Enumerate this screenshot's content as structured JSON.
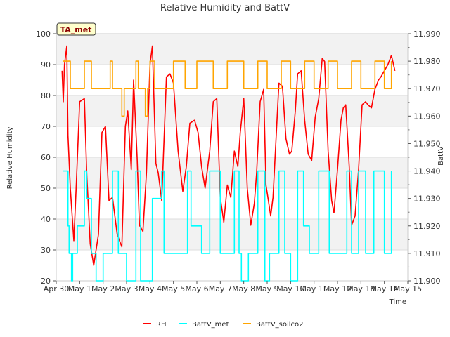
{
  "chart_data": {
    "type": "line",
    "title": "Relative Humidity and BattV",
    "badge": "TA_met",
    "xlabel": "Time",
    "ylabel_left": "Relative Humidity",
    "ylabel_right": "BattV",
    "x_range": [
      0,
      15
    ],
    "ylim_left": [
      20,
      100
    ],
    "ylim_right": [
      11.9,
      11.99
    ],
    "x_ticks": [
      {
        "x": 0,
        "label": "Apr 30"
      },
      {
        "x": 1,
        "label": "May 1"
      },
      {
        "x": 2,
        "label": "May 2"
      },
      {
        "x": 3,
        "label": "May 3"
      },
      {
        "x": 4,
        "label": "May 4"
      },
      {
        "x": 5,
        "label": "May 5"
      },
      {
        "x": 6,
        "label": "May 6"
      },
      {
        "x": 7,
        "label": "May 7"
      },
      {
        "x": 8,
        "label": "May 8"
      },
      {
        "x": 9,
        "label": "May 9"
      },
      {
        "x": 10,
        "label": "May 10"
      },
      {
        "x": 11,
        "label": "May 11"
      },
      {
        "x": 12,
        "label": "May 12"
      },
      {
        "x": 13,
        "label": "May 13"
      },
      {
        "x": 14,
        "label": "May 14"
      },
      {
        "x": 15,
        "label": "May 15"
      }
    ],
    "y_ticks_left": [
      "20",
      "30",
      "40",
      "50",
      "60",
      "70",
      "80",
      "90",
      "100"
    ],
    "y_ticks_right": [
      "11.900",
      "11.910",
      "11.920",
      "11.930",
      "11.940",
      "11.950",
      "11.960",
      "11.970",
      "11.980",
      "11.990"
    ],
    "grid": true,
    "legend_position": "bottom",
    "series": [
      {
        "name": "RH",
        "axis": "left",
        "color": "#ff0000",
        "x": [
          0.25,
          0.3,
          0.35,
          0.45,
          0.5,
          0.6,
          0.75,
          0.85,
          1.0,
          1.2,
          1.3,
          1.45,
          1.6,
          1.8,
          1.95,
          2.1,
          2.25,
          2.4,
          2.6,
          2.8,
          2.95,
          3.05,
          3.2,
          3.3,
          3.45,
          3.55,
          3.7,
          3.85,
          4.0,
          4.1,
          4.25,
          4.35,
          4.5,
          4.7,
          4.85,
          5.0,
          5.2,
          5.4,
          5.55,
          5.7,
          5.9,
          6.05,
          6.2,
          6.35,
          6.55,
          6.7,
          6.85,
          7.0,
          7.15,
          7.3,
          7.45,
          7.6,
          7.75,
          7.85,
          8.0,
          8.15,
          8.3,
          8.45,
          8.55,
          8.7,
          8.85,
          8.95,
          9.05,
          9.15,
          9.25,
          9.35,
          9.5,
          9.65,
          9.8,
          9.95,
          10.05,
          10.2,
          10.3,
          10.45,
          10.6,
          10.75,
          10.9,
          11.05,
          11.2,
          11.35,
          11.45,
          11.6,
          11.75,
          11.85,
          12.0,
          12.15,
          12.25,
          12.35,
          12.5,
          12.6,
          12.75,
          12.9,
          13.05,
          13.2,
          13.3,
          13.45,
          13.6,
          13.75,
          13.85,
          14.0,
          14.15,
          14.3,
          14.45
        ],
        "y": [
          88,
          78,
          90,
          96,
          67,
          50,
          33,
          50,
          78,
          79,
          55,
          32,
          25,
          35,
          68,
          70,
          46,
          47,
          35,
          31,
          70,
          75,
          56,
          85,
          60,
          38,
          36,
          55,
          90,
          96,
          58,
          55,
          46,
          86,
          87,
          84,
          62,
          49,
          57,
          71,
          72,
          68,
          57,
          50,
          62,
          78,
          79,
          47,
          39,
          51,
          47,
          62,
          57,
          68,
          79,
          50,
          38,
          45,
          55,
          78,
          82,
          51,
          46,
          41,
          47,
          62,
          84,
          83,
          66,
          61,
          62,
          75,
          87,
          88,
          72,
          61,
          59,
          73,
          79,
          92,
          91,
          62,
          46,
          42,
          56,
          72,
          76,
          77,
          57,
          38,
          41,
          56,
          77,
          78,
          77,
          76,
          82,
          85,
          86,
          88,
          90,
          93,
          88
        ]
      },
      {
        "name": "BattV_met",
        "axis": "right",
        "color": "#00ffff",
        "x": [
          0.3,
          0.5,
          0.55,
          0.65,
          0.7,
          0.9,
          1.2,
          1.3,
          1.5,
          1.7,
          2.0,
          2.4,
          2.65,
          3.0,
          3.4,
          3.6,
          3.9,
          4.1,
          4.5,
          4.6,
          5.0,
          5.6,
          5.75,
          6.2,
          6.55,
          6.7,
          7.0,
          7.6,
          7.8,
          7.9,
          8.2,
          8.6,
          8.9,
          9.1,
          9.5,
          9.75,
          10.0,
          10.3,
          10.55,
          10.8,
          11.2,
          11.65,
          11.95,
          12.4,
          12.6,
          12.9,
          13.2,
          13.55,
          14.0,
          14.3
        ],
        "y": [
          11.94,
          11.92,
          11.91,
          11.9,
          11.91,
          11.92,
          11.94,
          11.93,
          11.91,
          11.9,
          11.91,
          11.94,
          11.91,
          11.9,
          11.94,
          11.9,
          11.9,
          11.93,
          11.94,
          11.91,
          11.91,
          11.94,
          11.92,
          11.91,
          11.94,
          11.94,
          11.91,
          11.94,
          11.91,
          11.9,
          11.91,
          11.94,
          11.9,
          11.91,
          11.94,
          11.91,
          11.9,
          11.94,
          11.92,
          11.91,
          11.94,
          11.91,
          11.91,
          11.94,
          11.91,
          11.94,
          11.91,
          11.94,
          11.91,
          11.94
        ]
      },
      {
        "name": "BattV_soilco2",
        "axis": "right",
        "color": "#ffa500",
        "x": [
          0.3,
          0.5,
          0.6,
          0.9,
          1.2,
          1.5,
          1.9,
          2.3,
          2.4,
          2.8,
          2.9,
          3.1,
          3.4,
          3.5,
          3.8,
          3.9,
          4.0,
          4.2,
          4.7,
          5.0,
          5.5,
          6.0,
          6.7,
          7.3,
          8.0,
          8.6,
          9.0,
          9.6,
          10.0,
          10.6,
          11.0,
          11.6,
          12.0,
          12.6,
          13.0,
          13.6,
          14.0,
          14.3
        ],
        "y": [
          11.98,
          11.98,
          11.97,
          11.97,
          11.98,
          11.97,
          11.97,
          11.98,
          11.97,
          11.96,
          11.97,
          11.97,
          11.98,
          11.97,
          11.96,
          11.97,
          11.98,
          11.97,
          11.97,
          11.98,
          11.97,
          11.98,
          11.97,
          11.98,
          11.97,
          11.98,
          11.97,
          11.98,
          11.97,
          11.98,
          11.97,
          11.98,
          11.97,
          11.98,
          11.97,
          11.98,
          11.97,
          11.98
        ]
      }
    ]
  }
}
